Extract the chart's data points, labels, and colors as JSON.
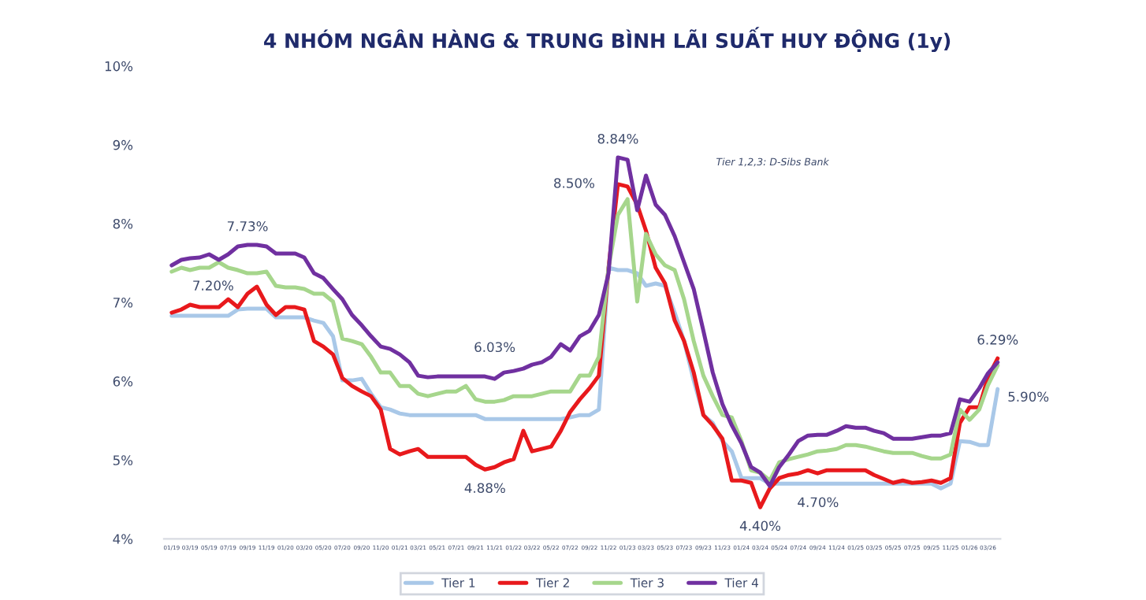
{
  "chart_data": {
    "type": "line",
    "title": "4 NHÓM NGÂN HÀNG & TRUNG BÌNH LÃI SUẤT HUY ĐỘNG (1y)",
    "x": [
      "2019-01",
      "2019-02",
      "2019-03",
      "2019-04",
      "2019-05",
      "2019-06",
      "2019-07",
      "2019-08",
      "2019-09",
      "2019-10",
      "2019-11",
      "2019-12",
      "2020-01",
      "2020-02",
      "2020-03",
      "2020-04",
      "2020-05",
      "2020-06",
      "2020-07",
      "2020-08",
      "2020-09",
      "2020-10",
      "2020-11",
      "2020-12",
      "2021-01",
      "2021-02",
      "2021-03",
      "2021-04",
      "2021-05",
      "2021-06",
      "2021-07",
      "2021-08",
      "2021-09",
      "2021-10",
      "2021-11",
      "2021-12",
      "2022-01",
      "2022-02",
      "2022-03",
      "2022-04",
      "2022-05",
      "2022-06",
      "2022-07",
      "2022-08",
      "2022-09",
      "2022-10",
      "2022-11",
      "2022-12",
      "2023-01",
      "2023-02",
      "2023-03",
      "2023-04",
      "2023-05",
      "2023-06",
      "2023-07",
      "2023-08",
      "2023-09",
      "2023-10",
      "2023-11",
      "2023-12",
      "2024-01",
      "2024-02",
      "2024-03",
      "2024-04",
      "2024-05",
      "2024-06",
      "2024-07",
      "2024-08",
      "2024-09",
      "2024-10",
      "2024-11",
      "2024-12",
      "2025-01",
      "2025-02",
      "2025-03",
      "2025-04",
      "2025-05",
      "2025-06",
      "2025-07",
      "2025-08",
      "2025-09",
      "2025-10",
      "2025-11",
      "2025-12",
      "2026-01",
      "2026-02",
      "2026-03",
      "2026-04"
    ],
    "series": [
      {
        "name": "Tier 1",
        "color": "#a9c8e8",
        "values": [
          6.83,
          6.83,
          6.83,
          6.83,
          6.83,
          6.83,
          6.83,
          6.91,
          6.92,
          6.92,
          6.92,
          6.81,
          6.81,
          6.81,
          6.81,
          6.77,
          6.74,
          6.57,
          6.01,
          6.01,
          6.03,
          5.84,
          5.67,
          5.64,
          5.59,
          5.57,
          5.57,
          5.57,
          5.57,
          5.57,
          5.57,
          5.57,
          5.57,
          5.52,
          5.52,
          5.52,
          5.52,
          5.52,
          5.52,
          5.52,
          5.52,
          5.52,
          5.54,
          5.57,
          5.57,
          5.64,
          7.44,
          7.41,
          7.41,
          7.37,
          7.21,
          7.24,
          7.21,
          6.87,
          6.51,
          6.01,
          5.57,
          5.47,
          5.24,
          5.11,
          4.77,
          4.77,
          4.77,
          4.7,
          4.7,
          4.7,
          4.7,
          4.7,
          4.7,
          4.7,
          4.7,
          4.7,
          4.7,
          4.7,
          4.7,
          4.7,
          4.7,
          4.7,
          4.7,
          4.7,
          4.7,
          4.64,
          4.7,
          5.24,
          5.23,
          5.19,
          5.19,
          5.9
        ]
      },
      {
        "name": "Tier 2",
        "color": "#e8191c",
        "values": [
          6.87,
          6.91,
          6.97,
          6.94,
          6.94,
          6.94,
          7.04,
          6.94,
          7.11,
          7.2,
          6.97,
          6.84,
          6.94,
          6.94,
          6.91,
          6.51,
          6.44,
          6.34,
          6.04,
          5.94,
          5.87,
          5.81,
          5.64,
          5.14,
          5.07,
          5.11,
          5.14,
          5.04,
          5.04,
          5.04,
          5.04,
          5.04,
          4.94,
          4.88,
          4.91,
          4.97,
          5.01,
          5.37,
          5.11,
          5.14,
          5.17,
          5.37,
          5.61,
          5.77,
          5.91,
          6.07,
          7.44,
          8.5,
          8.47,
          8.24,
          7.91,
          7.44,
          7.24,
          6.77,
          6.51,
          6.11,
          5.57,
          5.44,
          5.27,
          4.74,
          4.74,
          4.71,
          4.4,
          4.64,
          4.77,
          4.81,
          4.83,
          4.87,
          4.83,
          4.87,
          4.87,
          4.87,
          4.87,
          4.87,
          4.81,
          4.76,
          4.71,
          4.74,
          4.71,
          4.72,
          4.74,
          4.71,
          4.77,
          5.47,
          5.67,
          5.67,
          6.05,
          6.29
        ]
      },
      {
        "name": "Tier 3",
        "color": "#a6d68c",
        "values": [
          7.39,
          7.44,
          7.41,
          7.44,
          7.44,
          7.51,
          7.44,
          7.41,
          7.37,
          7.37,
          7.39,
          7.21,
          7.19,
          7.19,
          7.17,
          7.11,
          7.11,
          7.01,
          6.54,
          6.51,
          6.47,
          6.31,
          6.11,
          6.11,
          5.94,
          5.94,
          5.84,
          5.81,
          5.84,
          5.87,
          5.87,
          5.94,
          5.77,
          5.74,
          5.74,
          5.76,
          5.81,
          5.81,
          5.81,
          5.84,
          5.87,
          5.87,
          5.87,
          6.07,
          6.07,
          6.31,
          7.44,
          8.11,
          8.31,
          7.01,
          7.87,
          7.61,
          7.47,
          7.41,
          7.04,
          6.51,
          6.07,
          5.81,
          5.57,
          5.54,
          5.24,
          4.87,
          4.84,
          4.74,
          4.97,
          5.01,
          5.04,
          5.07,
          5.11,
          5.12,
          5.14,
          5.19,
          5.19,
          5.17,
          5.14,
          5.11,
          5.09,
          5.09,
          5.09,
          5.05,
          5.02,
          5.02,
          5.07,
          5.64,
          5.51,
          5.64,
          5.95,
          6.2
        ]
      },
      {
        "name": "Tier 4",
        "color": "#7030a0",
        "values": [
          7.47,
          7.54,
          7.56,
          7.57,
          7.61,
          7.54,
          7.61,
          7.71,
          7.73,
          7.73,
          7.71,
          7.62,
          7.62,
          7.62,
          7.57,
          7.37,
          7.31,
          7.17,
          7.04,
          6.84,
          6.71,
          6.57,
          6.44,
          6.41,
          6.34,
          6.24,
          6.07,
          6.05,
          6.06,
          6.06,
          6.06,
          6.06,
          6.06,
          6.06,
          6.03,
          6.11,
          6.13,
          6.16,
          6.21,
          6.24,
          6.31,
          6.47,
          6.39,
          6.57,
          6.64,
          6.84,
          7.37,
          8.84,
          8.81,
          8.17,
          8.61,
          8.24,
          8.11,
          7.84,
          7.51,
          7.17,
          6.64,
          6.11,
          5.71,
          5.44,
          5.21,
          4.91,
          4.84,
          4.67,
          4.91,
          5.07,
          5.24,
          5.31,
          5.32,
          5.32,
          5.37,
          5.43,
          5.41,
          5.41,
          5.37,
          5.34,
          5.27,
          5.27,
          5.27,
          5.29,
          5.31,
          5.31,
          5.34,
          5.77,
          5.74,
          5.91,
          6.1,
          6.24
        ]
      }
    ],
    "xlim": [
      "2018-12-07",
      "2026-04-10"
    ],
    "xticks": [
      {
        "value": "2019-01",
        "label": "01/19"
      },
      {
        "value": "2019-03",
        "label": "03/19"
      },
      {
        "value": "2019-05",
        "label": "05/19"
      },
      {
        "value": "2019-07",
        "label": "07/19"
      },
      {
        "value": "2019-09",
        "label": "09/19"
      },
      {
        "value": "2019-11",
        "label": "11/19"
      },
      {
        "value": "2020-01",
        "label": "01/20"
      },
      {
        "value": "2020-03",
        "label": "03/20"
      },
      {
        "value": "2020-05",
        "label": "05/20"
      },
      {
        "value": "2020-07",
        "label": "07/20"
      },
      {
        "value": "2020-09",
        "label": "09/20"
      },
      {
        "value": "2020-11",
        "label": "11/20"
      },
      {
        "value": "2021-01",
        "label": "01/21"
      },
      {
        "value": "2021-03",
        "label": "03/21"
      },
      {
        "value": "2021-05",
        "label": "05/21"
      },
      {
        "value": "2021-07",
        "label": "07/21"
      },
      {
        "value": "2021-09",
        "label": "09/21"
      },
      {
        "value": "2021-11",
        "label": "11/21"
      },
      {
        "value": "2022-01",
        "label": "01/22"
      },
      {
        "value": "2022-03",
        "label": "03/22"
      },
      {
        "value": "2022-05",
        "label": "05/22"
      },
      {
        "value": "2022-07",
        "label": "07/22"
      },
      {
        "value": "2022-09",
        "label": "09/22"
      },
      {
        "value": "2022-11",
        "label": "11/22"
      },
      {
        "value": "2023-01",
        "label": "01/23"
      },
      {
        "value": "2023-03",
        "label": "03/23"
      },
      {
        "value": "2023-05",
        "label": "05/23"
      },
      {
        "value": "2023-07",
        "label": "07/23"
      },
      {
        "value": "2023-09",
        "label": "09/23"
      },
      {
        "value": "2023-11",
        "label": "11/23"
      },
      {
        "value": "2024-01",
        "label": "01/24"
      },
      {
        "value": "2024-03",
        "label": "03/24"
      },
      {
        "value": "2024-05",
        "label": "05/24"
      },
      {
        "value": "2024-07",
        "label": "07/24"
      },
      {
        "value": "2024-09",
        "label": "09/24"
      },
      {
        "value": "2024-11",
        "label": "11/24"
      },
      {
        "value": "2025-01",
        "label": "01/25"
      },
      {
        "value": "2025-03",
        "label": "03/25"
      },
      {
        "value": "2025-05",
        "label": "05/25"
      },
      {
        "value": "2025-07",
        "label": "07/25"
      },
      {
        "value": "2025-09",
        "label": "09/25"
      },
      {
        "value": "2025-11",
        "label": "11/25"
      },
      {
        "value": "2026-01",
        "label": "01/26"
      },
      {
        "value": "2026-03",
        "label": "03/26"
      }
    ],
    "ylim": [
      4,
      10
    ],
    "yticks": [
      {
        "value": 4,
        "label": "4%"
      },
      {
        "value": 5,
        "label": "5%"
      },
      {
        "value": 6,
        "label": "6%"
      },
      {
        "value": 7,
        "label": "7%"
      },
      {
        "value": 8,
        "label": "8%"
      },
      {
        "value": 9,
        "label": "9%"
      },
      {
        "value": 10,
        "label": "10%"
      }
    ],
    "grid": false,
    "legend": "bottom",
    "annotations": [
      {
        "text": "7.73%",
        "x": "2019-09",
        "y": 7.73
      },
      {
        "text": "7.20%",
        "x": "2019-10",
        "y": 7.2
      },
      {
        "text": "6.03%",
        "x": "2021-11",
        "y": 6.03
      },
      {
        "text": "4.88%",
        "x": "2021-10",
        "y": 4.88
      },
      {
        "text": "8.84%",
        "x": "2022-12",
        "y": 8.84
      },
      {
        "text": "8.50%",
        "x": "2022-12",
        "y": 8.5
      },
      {
        "text": "4.70%",
        "x": "2024-04",
        "y": 4.7
      },
      {
        "text": "4.40%",
        "x": "2024-03",
        "y": 4.4
      },
      {
        "text": "6.29%",
        "x": "2026-04",
        "y": 6.29
      },
      {
        "text": "5.90%",
        "x": "2026-04",
        "y": 5.9
      },
      "Tier 1,2,3: D-Sibs Bank"
    ]
  }
}
